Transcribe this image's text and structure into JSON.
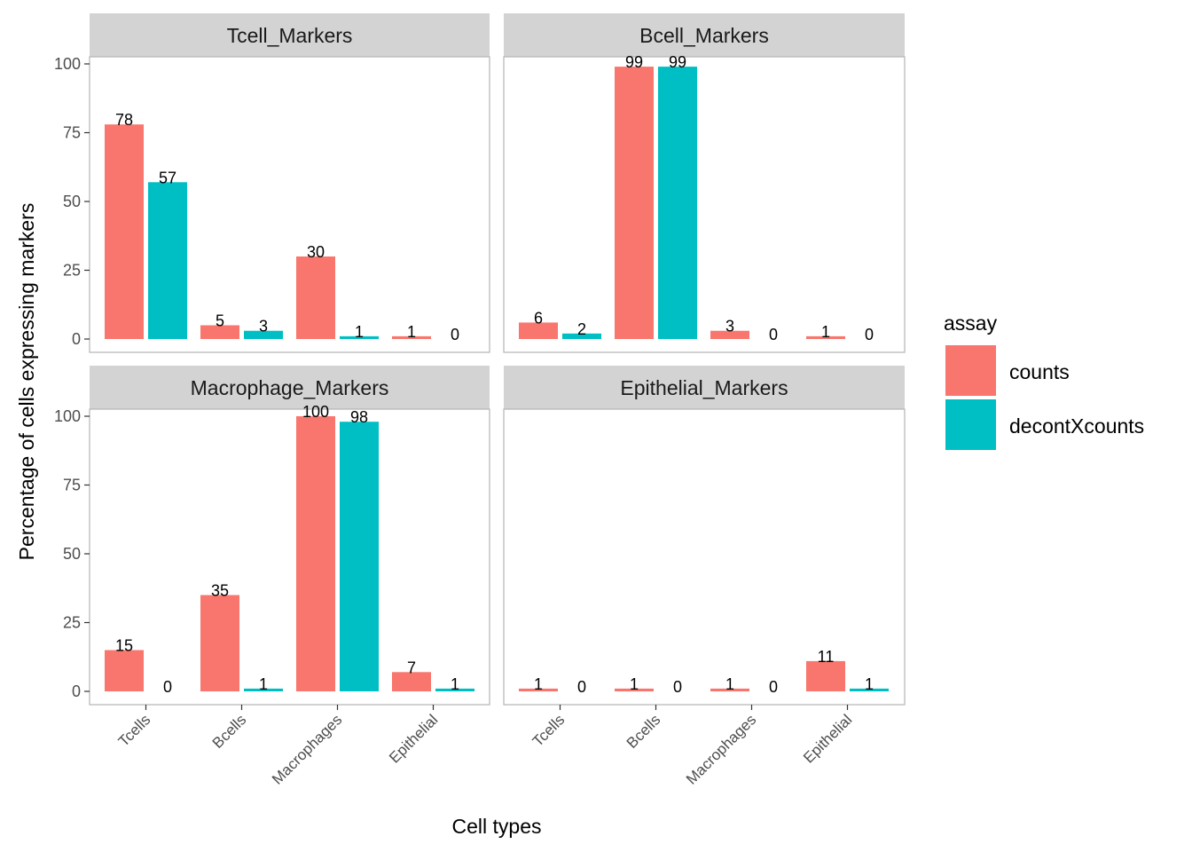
{
  "chart_data": {
    "type": "bar",
    "xlabel": "Cell types",
    "ylabel": "Percentage of cells expressing markers",
    "ylim": [
      0,
      105
    ],
    "yticks": [
      0,
      25,
      50,
      75,
      100
    ],
    "categories": [
      "Tcells",
      "Bcells",
      "Macrophages",
      "Epithelial"
    ],
    "legend": {
      "title": "assay",
      "placement": "right",
      "entries": [
        {
          "name": "counts",
          "color": "#F8766D"
        },
        {
          "name": "decontXcounts",
          "color": "#00BFC4"
        }
      ]
    },
    "grid": false,
    "facets": [
      {
        "title": "Tcell_Markers",
        "series": [
          {
            "name": "counts",
            "values": [
              78,
              5,
              30,
              1
            ],
            "labels": [
              "78",
              "5",
              "30",
              "1"
            ]
          },
          {
            "name": "decontXcounts",
            "values": [
              57,
              3,
              1,
              0
            ],
            "labels": [
              "57",
              "3",
              "1",
              "0"
            ]
          }
        ]
      },
      {
        "title": "Bcell_Markers",
        "series": [
          {
            "name": "counts",
            "values": [
              6,
              99,
              3,
              1
            ],
            "labels": [
              "6",
              "99",
              "3",
              "1"
            ]
          },
          {
            "name": "decontXcounts",
            "values": [
              2,
              99,
              0,
              0
            ],
            "labels": [
              "2",
              "99",
              "0",
              "0"
            ]
          }
        ]
      },
      {
        "title": "Macrophage_Markers",
        "series": [
          {
            "name": "counts",
            "values": [
              15,
              35,
              100,
              7
            ],
            "labels": [
              "15",
              "35",
              "100",
              "7"
            ]
          },
          {
            "name": "decontXcounts",
            "values": [
              0,
              1,
              98,
              1
            ],
            "labels": [
              "0",
              "1",
              "98",
              "1"
            ]
          }
        ]
      },
      {
        "title": "Epithelial_Markers",
        "series": [
          {
            "name": "counts",
            "values": [
              1,
              1,
              1,
              11
            ],
            "labels": [
              "1",
              "1",
              "1",
              "11"
            ]
          },
          {
            "name": "decontXcounts",
            "values": [
              0,
              0,
              0,
              1
            ],
            "labels": [
              "0",
              "0",
              "0",
              "1"
            ]
          }
        ]
      }
    ]
  }
}
